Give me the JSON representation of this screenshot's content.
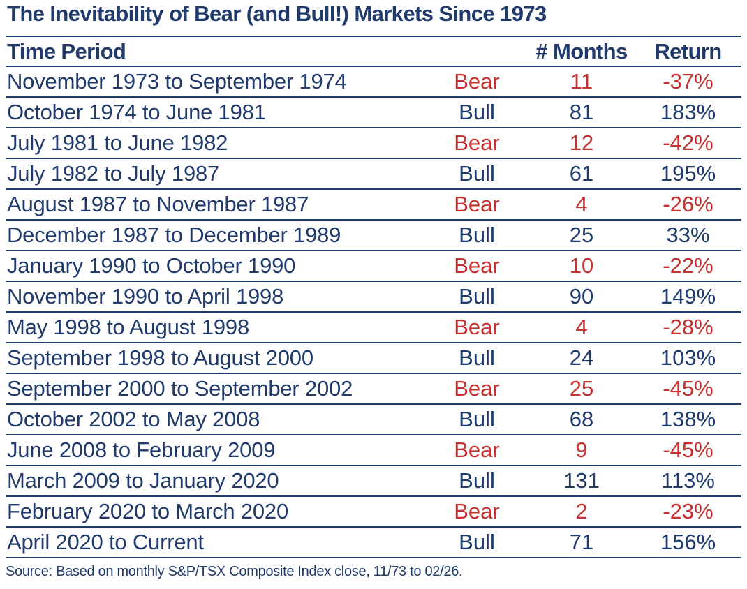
{
  "title": "The Inevitability of Bear (and Bull!) Markets Since 1973",
  "header": {
    "period": "Time Period",
    "months": "# Months",
    "return": "Return"
  },
  "colors": {
    "text": "#1f3a6b",
    "bear": "#c4312f"
  },
  "rows": [
    {
      "period": "November 1973 to September 1974",
      "type": "Bear",
      "months": "11",
      "return": "-37%"
    },
    {
      "period": "October 1974 to June 1981",
      "type": "Bull",
      "months": "81",
      "return": "183%"
    },
    {
      "period": "July 1981 to June 1982",
      "type": "Bear",
      "months": "12",
      "return": "-42%"
    },
    {
      "period": "July 1982 to July 1987",
      "type": "Bull",
      "months": "61",
      "return": "195%"
    },
    {
      "period": "August 1987 to November 1987",
      "type": "Bear",
      "months": "4",
      "return": "-26%"
    },
    {
      "period": "December 1987 to December 1989",
      "type": "Bull",
      "months": "25",
      "return": "33%"
    },
    {
      "period": "January 1990 to October 1990",
      "type": "Bear",
      "months": "10",
      "return": "-22%"
    },
    {
      "period": "November 1990 to April 1998",
      "type": "Bull",
      "months": "90",
      "return": "149%"
    },
    {
      "period": "May 1998 to August 1998",
      "type": "Bear",
      "months": "4",
      "return": "-28%"
    },
    {
      "period": "September 1998 to August 2000",
      "type": "Bull",
      "months": "24",
      "return": "103%"
    },
    {
      "period": "September 2000 to September 2002",
      "type": "Bear",
      "months": "25",
      "return": "-45%"
    },
    {
      "period": "October 2002 to May 2008",
      "type": "Bull",
      "months": "68",
      "return": "138%"
    },
    {
      "period": "June 2008 to February 2009",
      "type": "Bear",
      "months": "9",
      "return": "-45%"
    },
    {
      "period": "March 2009 to January 2020",
      "type": "Bull",
      "months": "131",
      "return": "113%"
    },
    {
      "period": "February 2020 to March 2020",
      "type": "Bear",
      "months": "2",
      "return": "-23%"
    },
    {
      "period": "April 2020 to Current",
      "type": "Bull",
      "months": "71",
      "return": "156%"
    }
  ],
  "source": "Source: Based on monthly S&P/TSX Composite Index close, 11/73 to 02/26."
}
